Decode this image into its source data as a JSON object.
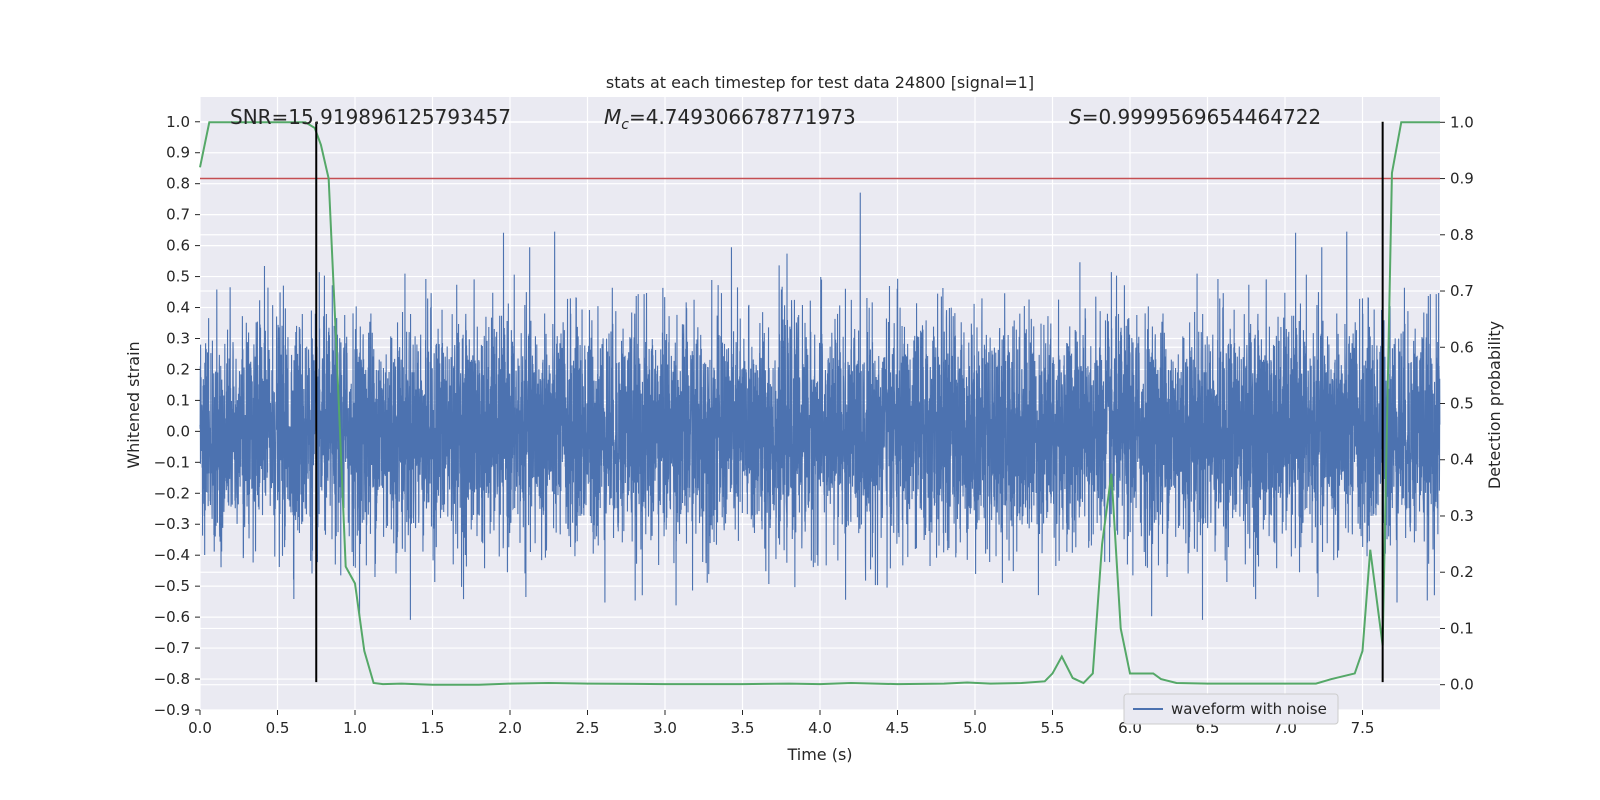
{
  "chart_data": {
    "type": "line",
    "title": "stats at each timestep for test data 24800 [signal=1]",
    "xlabel": "Time (s)",
    "ylabel": "Whitened strain",
    "y2label": "Detection probability",
    "xlim": [
      0.0,
      8.0
    ],
    "ylim": [
      -0.9,
      1.08
    ],
    "y2lim": [
      -0.045,
      1.045
    ],
    "x_ticks": [
      "0.0",
      "0.5",
      "1.0",
      "1.5",
      "2.0",
      "2.5",
      "3.0",
      "3.5",
      "4.0",
      "4.5",
      "5.0",
      "5.5",
      "6.0",
      "6.5",
      "7.0",
      "7.5"
    ],
    "x_tick_values": [
      0.0,
      0.5,
      1.0,
      1.5,
      2.0,
      2.5,
      3.0,
      3.5,
      4.0,
      4.5,
      5.0,
      5.5,
      6.0,
      6.5,
      7.0,
      7.5
    ],
    "y_ticks": [
      "−0.9",
      "−0.8",
      "−0.7",
      "−0.6",
      "−0.5",
      "−0.4",
      "−0.3",
      "−0.2",
      "−0.1",
      "0.0",
      "0.1",
      "0.2",
      "0.3",
      "0.4",
      "0.5",
      "0.6",
      "0.7",
      "0.8",
      "0.9",
      "1.0"
    ],
    "y_tick_values": [
      -0.9,
      -0.8,
      -0.7,
      -0.6,
      -0.5,
      -0.4,
      -0.3,
      -0.2,
      -0.1,
      0.0,
      0.1,
      0.2,
      0.3,
      0.4,
      0.5,
      0.6,
      0.7,
      0.8,
      0.9,
      1.0
    ],
    "y2_ticks": [
      "0.0",
      "0.1",
      "0.2",
      "0.3",
      "0.4",
      "0.5",
      "0.6",
      "0.7",
      "0.8",
      "0.9",
      "1.0"
    ],
    "y2_tick_values": [
      0.0,
      0.1,
      0.2,
      0.3,
      0.4,
      0.5,
      0.6,
      0.7,
      0.8,
      0.9,
      1.0
    ],
    "grid": true,
    "legend_position": "bottom-right",
    "annotations": {
      "snr": "SNR=15.919896125793457",
      "mc_symbol": "M",
      "mc_sub": "c",
      "mc_value": "=4.749306678771973",
      "s_symbol": "S",
      "s_value": "=0.9999569654464722"
    },
    "threshold": {
      "axis": "y2",
      "value": 0.9,
      "color": "#c44e52"
    },
    "vertical_markers": {
      "x": [
        0.75,
        7.63
      ],
      "y_range": [
        -0.81,
        1.0
      ],
      "color": "#000000"
    },
    "series": [
      {
        "name": "waveform with noise",
        "axis": "y",
        "color": "#4c72b0",
        "style": "noise",
        "samples": 8192,
        "core_amplitude": 0.27,
        "typical_peak_amplitude": 0.5,
        "max": 1.0,
        "min": -0.81
      },
      {
        "axis": "y2",
        "color": "#55a868",
        "x": [
          0.0,
          0.06,
          0.25,
          0.5,
          0.68,
          0.74,
          0.78,
          0.83,
          0.88,
          0.94,
          1.0,
          1.06,
          1.12,
          1.18,
          1.3,
          1.5,
          1.8,
          2.0,
          2.25,
          2.5,
          3.0,
          3.5,
          3.8,
          4.0,
          4.2,
          4.5,
          4.8,
          4.95,
          5.1,
          5.3,
          5.45,
          5.5,
          5.56,
          5.63,
          5.7,
          5.76,
          5.82,
          5.88,
          5.94,
          6.0,
          6.15,
          6.2,
          6.3,
          6.5,
          7.0,
          7.2,
          7.3,
          7.45,
          7.5,
          7.55,
          7.63,
          7.69,
          7.75,
          7.81,
          8.0
        ],
        "y": [
          0.92,
          1.0,
          1.0,
          1.0,
          1.0,
          0.99,
          0.96,
          0.9,
          0.6,
          0.21,
          0.18,
          0.06,
          0.003,
          0.001,
          0.002,
          0.0,
          0.0,
          0.002,
          0.003,
          0.002,
          0.001,
          0.001,
          0.002,
          0.001,
          0.003,
          0.001,
          0.002,
          0.004,
          0.002,
          0.003,
          0.006,
          0.02,
          0.05,
          0.012,
          0.003,
          0.02,
          0.25,
          0.375,
          0.1,
          0.02,
          0.02,
          0.01,
          0.003,
          0.002,
          0.002,
          0.002,
          0.01,
          0.02,
          0.06,
          0.24,
          0.07,
          0.91,
          1.0,
          1.0,
          1.0
        ]
      }
    ]
  }
}
